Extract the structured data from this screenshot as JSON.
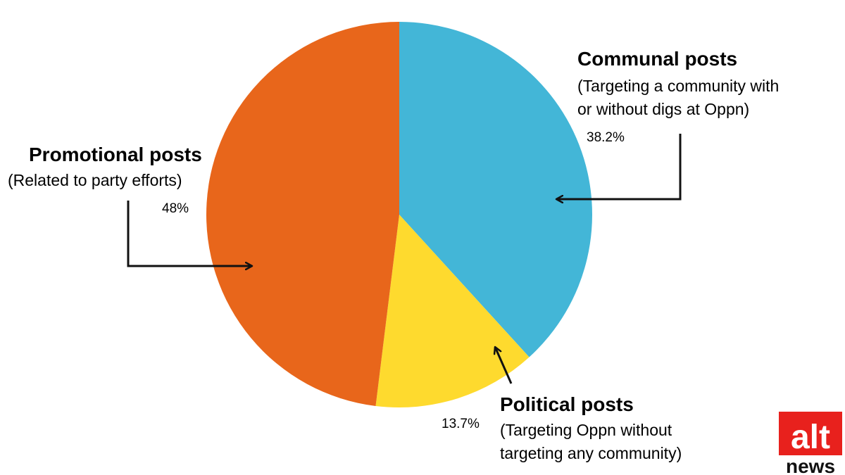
{
  "chart_data": {
    "type": "pie",
    "slices": [
      {
        "name": "Communal posts",
        "description": "(Targeting a community with or without digs at Oppn)",
        "description_lines": [
          "(Targeting a community with",
          "or without digs at Oppn)"
        ],
        "value": 38.2,
        "value_label": "38.2%",
        "color": "#43B6D7"
      },
      {
        "name": "Political posts",
        "description": "(Targeting Oppn without targeting any community)",
        "description_lines": [
          "(Targeting Oppn without",
          "targeting any community)"
        ],
        "value": 13.7,
        "value_label": "13.7%",
        "color": "#FEDA2E"
      },
      {
        "name": "Promotional posts",
        "description": "(Related to party efforts)",
        "description_lines": [
          "(Related to party efforts)"
        ],
        "value": 48,
        "value_label": "48%",
        "color": "#E8661B"
      }
    ],
    "start": "12 o'clock",
    "direction": "clockwise",
    "legend": "none"
  },
  "logo": {
    "line1": "alt",
    "line2": "news",
    "color": "#E8211D"
  }
}
